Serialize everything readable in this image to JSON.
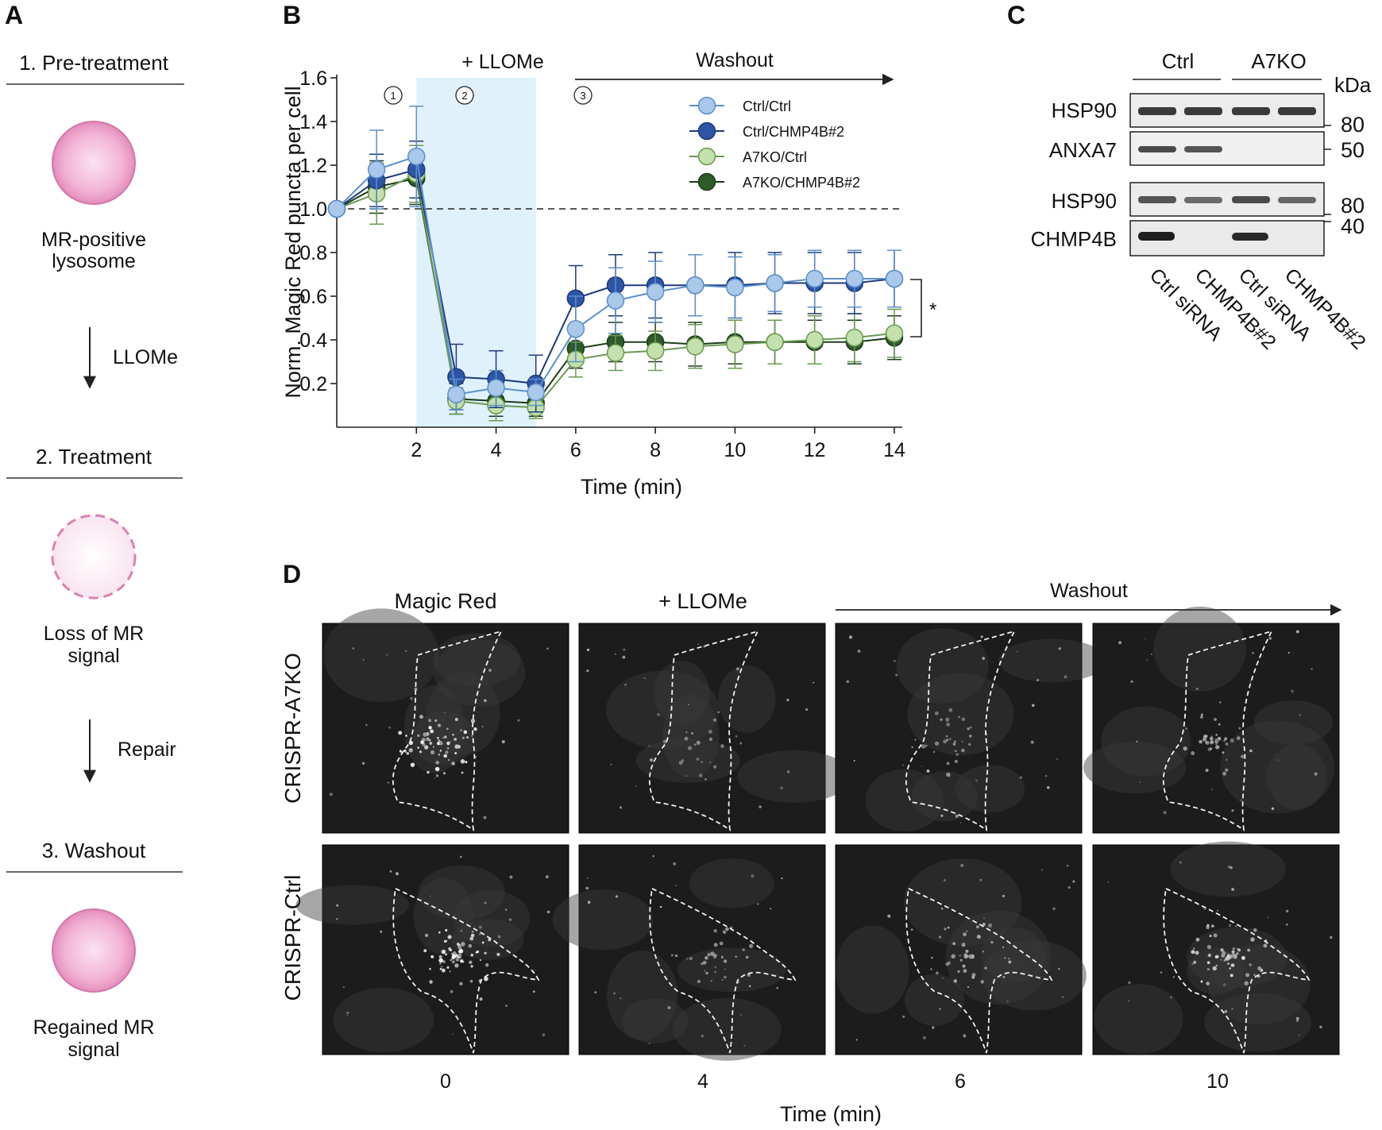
{
  "colors": {
    "ctrl_ctrl": "#a9c8ea",
    "ctrl_ctrl_stroke": "#5d8fcb",
    "ctrl_chmp": "#2e55a5",
    "ctrl_chmp_stroke": "#1c3a7c",
    "a7ko_ctrl": "#c4e0ad",
    "a7ko_ctrl_stroke": "#6a9a52",
    "a7ko_chmp": "#2f5a2a",
    "a7ko_chmp_stroke": "#1c3c19",
    "treatment_band": "#dff1fb",
    "lysosome_fill": "#ec9ac6",
    "micrograph_bg": "#1c1c1c"
  },
  "panel_a": {
    "letter": "A",
    "step1": "1. Pre-treatment",
    "label1_line1": "MR-positive",
    "label1_line2": "lysosome",
    "arrow1": "LLOMe",
    "step2": "2. Treatment",
    "label2_line1": "Loss of MR",
    "label2_line2": "signal",
    "arrow2": "Repair",
    "step3": "3. Washout",
    "label3_line1": "Regained MR",
    "label3_line2": "signal"
  },
  "panel_b": {
    "letter": "B",
    "treatment_label": "+ LLOMe",
    "washout_label": "Washout",
    "phase_markers": [
      "1",
      "2",
      "3"
    ],
    "significance": "*"
  },
  "chart_data": {
    "type": "line",
    "title": "",
    "xlabel": "Time (min)",
    "ylabel": "Norm. Magic Red puncta per cell",
    "xlim": [
      0,
      14.2
    ],
    "ylim": [
      0,
      1.6
    ],
    "xticks": [
      2,
      4,
      6,
      8,
      10,
      12,
      14
    ],
    "yticks": [
      0.2,
      0.4,
      0.6,
      0.8,
      1.0,
      1.2,
      1.4,
      1.6
    ],
    "reference_line": 1.0,
    "treatment_window": [
      2,
      5
    ],
    "x": [
      0,
      1,
      2,
      3,
      4,
      5,
      6,
      7,
      8,
      9,
      10,
      11,
      12,
      13,
      14
    ],
    "series": [
      {
        "name": "Ctrl/Ctrl",
        "values": [
          1.0,
          1.18,
          1.24,
          0.15,
          0.18,
          0.16,
          0.45,
          0.58,
          0.62,
          0.65,
          0.64,
          0.66,
          0.68,
          0.68,
          0.68
        ],
        "errors": [
          0,
          0.18,
          0.23,
          0.07,
          0.08,
          0.06,
          0.15,
          0.15,
          0.14,
          0.14,
          0.14,
          0.13,
          0.13,
          0.13,
          0.13
        ]
      },
      {
        "name": "Ctrl/CHMP4B#2",
        "values": [
          1.0,
          1.13,
          1.18,
          0.23,
          0.22,
          0.2,
          0.59,
          0.65,
          0.65,
          0.65,
          0.65,
          0.66,
          0.66,
          0.66,
          0.68
        ],
        "errors": [
          0,
          0.12,
          0.13,
          0.15,
          0.13,
          0.13,
          0.15,
          0.14,
          0.15,
          0.14,
          0.15,
          0.14,
          0.14,
          0.14,
          0.13
        ]
      },
      {
        "name": "A7KO/Ctrl",
        "values": [
          1.0,
          1.07,
          1.16,
          0.12,
          0.1,
          0.09,
          0.31,
          0.34,
          0.35,
          0.37,
          0.38,
          0.39,
          0.4,
          0.41,
          0.43
        ],
        "errors": [
          0,
          0.14,
          0.13,
          0.06,
          0.07,
          0.05,
          0.08,
          0.08,
          0.09,
          0.1,
          0.11,
          0.1,
          0.11,
          0.11,
          0.11
        ]
      },
      {
        "name": "A7KO/CHMP4B#2",
        "values": [
          1.0,
          1.1,
          1.14,
          0.13,
          0.12,
          0.11,
          0.36,
          0.39,
          0.39,
          0.38,
          0.39,
          0.39,
          0.39,
          0.39,
          0.41
        ],
        "errors": [
          0,
          0.12,
          0.12,
          0.07,
          0.07,
          0.06,
          0.09,
          0.09,
          0.09,
          0.1,
          0.1,
          0.1,
          0.1,
          0.1,
          0.1
        ]
      }
    ],
    "legend_position": "top-right"
  },
  "panel_c": {
    "letter": "C",
    "group1": "Ctrl",
    "group2": "A7KO",
    "kda_label": "kDa",
    "rows": [
      "HSP90",
      "ANXA7",
      "HSP90",
      "CHMP4B"
    ],
    "markers": [
      "80",
      "50",
      "80",
      "40"
    ],
    "lanes": [
      "Ctrl siRNA",
      "CHMP4B#2",
      "Ctrl siRNA",
      "CHMP4B#2"
    ]
  },
  "panel_d": {
    "letter": "D",
    "col_headers": [
      "Magic Red",
      "+ LLOMe"
    ],
    "washout_label": "Washout",
    "row_labels": [
      "CRISPR-A7KO",
      "CRISPR-Ctrl"
    ],
    "times": [
      "0",
      "4",
      "6",
      "10"
    ],
    "xlabel": "Time (min)"
  }
}
